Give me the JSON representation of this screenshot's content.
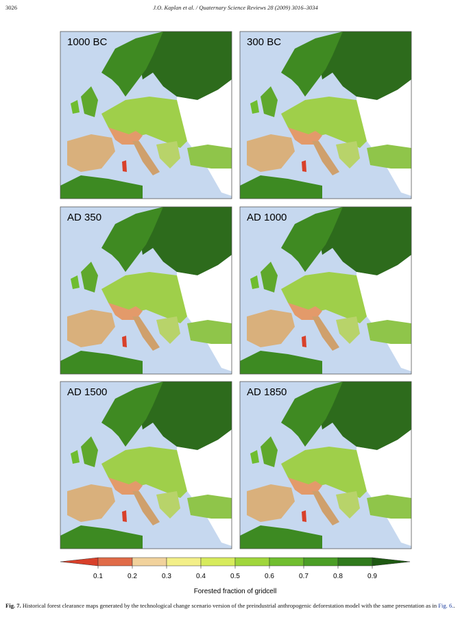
{
  "header": {
    "page_number": "3026",
    "running_title": "J.O. Kaplan et al. / Quaternary Science Reviews 28 (2009) 3016–3034"
  },
  "figure": {
    "panels": [
      {
        "label": "1000 BC"
      },
      {
        "label": "300 BC"
      },
      {
        "label": "AD 350"
      },
      {
        "label": "AD 1000"
      },
      {
        "label": "AD 1500"
      },
      {
        "label": "AD 1850"
      }
    ],
    "colorbar": {
      "ticks": [
        0.1,
        0.2,
        0.3,
        0.4,
        0.5,
        0.6,
        0.7,
        0.8,
        0.9
      ],
      "colors": [
        "#d8402a",
        "#e06b48",
        "#f1d29c",
        "#f3ef88",
        "#d7eb5c",
        "#a0d63c",
        "#70be2f",
        "#4b9e26",
        "#2f7a1c",
        "#1e5912"
      ],
      "label": "Forested fraction of gridcell"
    },
    "caption": {
      "label": "Fig. 7.",
      "text": "Historical forest clearance maps generated by the technological change scenario version of the preindustrial anthropogenic deforestation model with the same presentation as in",
      "reference": "Fig. 6.",
      "end": "."
    }
  }
}
